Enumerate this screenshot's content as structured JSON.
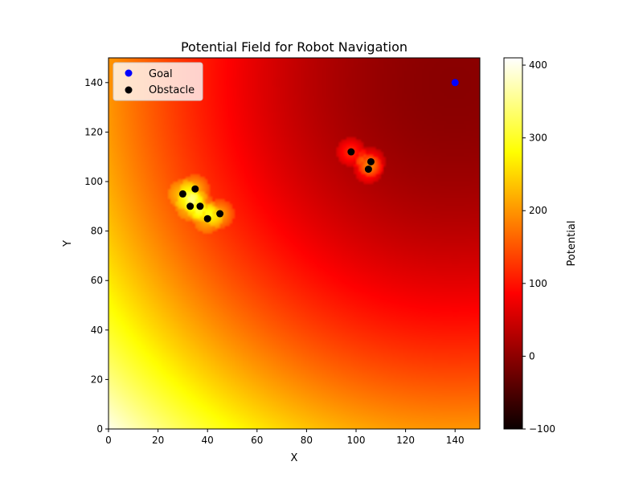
{
  "chart_data": {
    "type": "heatmap",
    "title": "Potential Field for Robot Navigation",
    "xlabel": "X",
    "ylabel": "Y",
    "xlim": [
      0,
      150
    ],
    "ylim": [
      0,
      150
    ],
    "x_ticks": [
      0,
      20,
      40,
      60,
      80,
      100,
      120,
      140
    ],
    "y_ticks": [
      0,
      20,
      40,
      60,
      80,
      100,
      120,
      140
    ],
    "colormap": "hot",
    "colorbar": {
      "label": "Potential",
      "range": [
        -100,
        410
      ],
      "ticks": [
        -100,
        0,
        100,
        200,
        300,
        400
      ]
    },
    "goal": {
      "name": "Goal",
      "color": "#0000ff",
      "x": 140,
      "y": 140
    },
    "obstacles": {
      "name": "Obstacle",
      "color": "#000000",
      "points": [
        {
          "x": 30,
          "y": 95
        },
        {
          "x": 35,
          "y": 97
        },
        {
          "x": 33,
          "y": 90
        },
        {
          "x": 37,
          "y": 90
        },
        {
          "x": 40,
          "y": 85
        },
        {
          "x": 45,
          "y": 87
        },
        {
          "x": 98,
          "y": 112
        },
        {
          "x": 106,
          "y": 108
        },
        {
          "x": 105,
          "y": 105
        }
      ]
    },
    "legend": {
      "position": "top-left",
      "entries": [
        {
          "label": "Goal",
          "color": "#0000ff"
        },
        {
          "label": "Obstacle",
          "color": "#000000"
        }
      ]
    },
    "grid": false
  }
}
